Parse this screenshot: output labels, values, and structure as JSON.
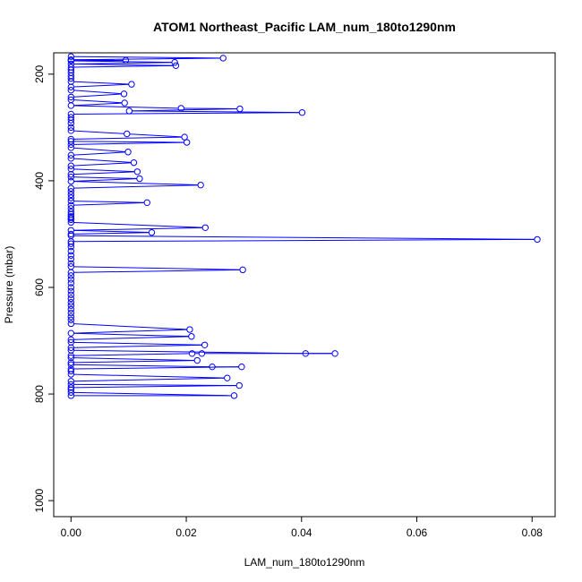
{
  "chart_data": {
    "type": "line",
    "title": "ATOM1 Northeast_Pacific LAM_num_180to1290nm",
    "xlabel": "LAM_num_180to1290nm",
    "ylabel": "Pressure (mbar)",
    "xlim": [
      -0.003,
      0.084
    ],
    "ylim": [
      1030,
      160
    ],
    "y_reversed": true,
    "xticks": [
      0.0,
      0.02,
      0.04,
      0.06,
      0.08
    ],
    "xtick_labels": [
      "0.00",
      "0.02",
      "0.04",
      "0.06",
      "0.08"
    ],
    "yticks": [
      200,
      400,
      600,
      800,
      1000
    ],
    "ytick_labels": [
      "200",
      "400",
      "600",
      "800",
      "1000"
    ],
    "grid": false,
    "color": "#0000ff",
    "marker": "open-circle",
    "series": [
      {
        "points": [
          [
            0.0,
            167
          ],
          [
            0.0264,
            170
          ],
          [
            0.0,
            173
          ],
          [
            0.0095,
            174
          ],
          [
            0.0,
            175
          ],
          [
            0.018,
            178
          ],
          [
            0.0,
            181
          ],
          [
            0.0182,
            184
          ],
          [
            0.0,
            187
          ],
          [
            0.0,
            192
          ],
          [
            0.0,
            197
          ],
          [
            0.0,
            203
          ],
          [
            0.0,
            208
          ],
          [
            0.0,
            214
          ],
          [
            0.0105,
            219
          ],
          [
            0.0,
            224
          ],
          [
            0.0,
            230
          ],
          [
            0.0092,
            237
          ],
          [
            0.0,
            243
          ],
          [
            0.0,
            248
          ],
          [
            0.0093,
            254
          ],
          [
            0.0,
            259
          ],
          [
            0.0191,
            264
          ],
          [
            0.0293,
            265
          ],
          [
            0.0101,
            269
          ],
          [
            0.0401,
            272
          ],
          [
            0.0,
            275
          ],
          [
            0.0,
            281
          ],
          [
            0.0,
            286
          ],
          [
            0.0,
            292
          ],
          [
            0.0,
            300
          ],
          [
            0.0,
            306
          ],
          [
            0.0097,
            312
          ],
          [
            0.0197,
            318
          ],
          [
            0.0,
            322
          ],
          [
            0.0,
            326
          ],
          [
            0.0201,
            328
          ],
          [
            0.0,
            332
          ],
          [
            0.0,
            338
          ],
          [
            0.0099,
            346
          ],
          [
            0.0,
            352
          ],
          [
            0.0,
            358
          ],
          [
            0.0109,
            366
          ],
          [
            0.0,
            372
          ],
          [
            0.0,
            378
          ],
          [
            0.0115,
            383
          ],
          [
            0.0,
            388
          ],
          [
            0.0,
            393
          ],
          [
            0.0119,
            396
          ],
          [
            0.0,
            401
          ],
          [
            0.0225,
            408
          ],
          [
            0.0,
            414
          ],
          [
            0.0,
            420
          ],
          [
            0.0,
            426
          ],
          [
            0.0,
            432
          ],
          [
            0.0,
            438
          ],
          [
            0.0132,
            441
          ],
          [
            0.0,
            446
          ],
          [
            0.0,
            452
          ],
          [
            0.0,
            458
          ],
          [
            0.0,
            463
          ],
          [
            0.0,
            467
          ],
          [
            0.0,
            470
          ],
          [
            0.0,
            473
          ],
          [
            0.0,
            478
          ],
          [
            0.0233,
            488
          ],
          [
            0.0,
            493
          ],
          [
            0.014,
            497
          ],
          [
            0.0,
            500
          ],
          [
            0.0,
            503
          ],
          [
            0.0809,
            510
          ],
          [
            0.0,
            514
          ],
          [
            0.0,
            518
          ],
          [
            0.0,
            524
          ],
          [
            0.0,
            532
          ],
          [
            0.0,
            540
          ],
          [
            0.0,
            547
          ],
          [
            0.0,
            555
          ],
          [
            0.0,
            561
          ],
          [
            0.0298,
            567
          ],
          [
            0.0,
            572
          ],
          [
            0.0,
            578
          ],
          [
            0.0,
            585
          ],
          [
            0.0,
            592
          ],
          [
            0.0,
            600
          ],
          [
            0.0,
            607
          ],
          [
            0.0,
            614
          ],
          [
            0.0,
            621
          ],
          [
            0.0,
            628
          ],
          [
            0.0,
            634
          ],
          [
            0.0,
            641
          ],
          [
            0.0,
            648
          ],
          [
            0.0,
            655
          ],
          [
            0.0,
            661
          ],
          [
            0.0,
            668
          ],
          [
            0.0206,
            679
          ],
          [
            0.0,
            686
          ],
          [
            0.0209,
            692
          ],
          [
            0.0,
            698
          ],
          [
            0.0,
            703
          ],
          [
            0.0232,
            708
          ],
          [
            0.0,
            713
          ],
          [
            0.0,
            718
          ],
          [
            0.0407,
            724
          ],
          [
            0.0458,
            724
          ],
          [
            0.0227,
            724
          ],
          [
            0.021,
            724
          ],
          [
            0.0,
            728
          ],
          [
            0.0,
            732
          ],
          [
            0.0219,
            737
          ],
          [
            0.0,
            741
          ],
          [
            0.0,
            745
          ],
          [
            0.0245,
            749
          ],
          [
            0.0296,
            749
          ],
          [
            0.0,
            753
          ],
          [
            0.0,
            757
          ],
          [
            0.0,
            763
          ],
          [
            0.0271,
            770
          ],
          [
            0.0,
            776
          ],
          [
            0.0,
            782
          ],
          [
            0.0292,
            784
          ],
          [
            0.0,
            788
          ],
          [
            0.0,
            792
          ],
          [
            0.0,
            797
          ],
          [
            0.0283,
            803
          ],
          [
            0.0,
            803
          ]
        ]
      }
    ]
  }
}
